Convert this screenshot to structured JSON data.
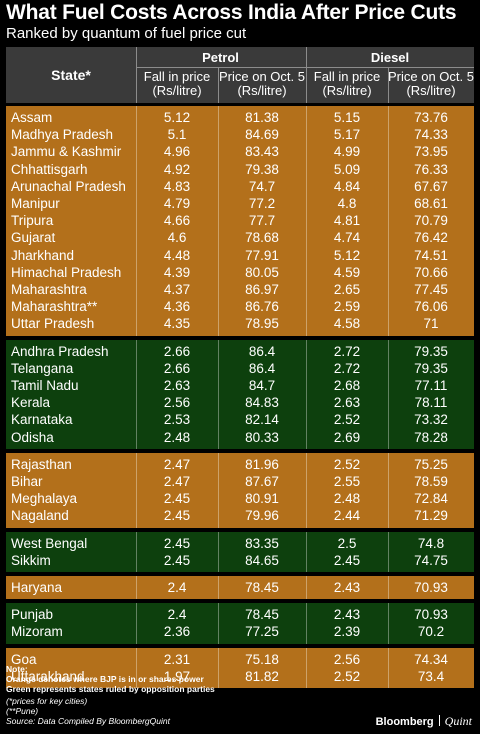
{
  "title": "What Fuel Costs Across India After Price Cuts",
  "subtitle": "Ranked by quantum of fuel price cut",
  "colors": {
    "bjp_orange": "#b3701b",
    "opposition_green": "#0d400d",
    "header_gray": "#3a3a3a"
  },
  "header": {
    "state": "State*",
    "petrol": "Petrol",
    "diesel": "Diesel",
    "fall_line1": "Fall in price",
    "fall_line2": "(Rs/litre)",
    "price_line1": "Price on Oct. 5",
    "price_line2": "(Rs/litre)"
  },
  "chart_data": {
    "type": "table",
    "columns": [
      "State*",
      "Petrol Fall in price (Rs/litre)",
      "Petrol Price on Oct. 5 (Rs/litre)",
      "Diesel Fall in price (Rs/litre)",
      "Diesel Price on Oct. 5 (Rs/litre)"
    ],
    "groups": [
      {
        "color": "orange",
        "rows": [
          [
            "Assam",
            "5.12",
            "81.38",
            "5.15",
            "73.76"
          ],
          [
            "Madhya Pradesh",
            "5.1",
            "84.69",
            "5.17",
            "74.33"
          ],
          [
            "Jammu & Kashmir",
            "4.96",
            "83.43",
            "4.99",
            "73.95"
          ],
          [
            "Chhattisgarh",
            "4.92",
            "79.38",
            "5.09",
            "76.33"
          ],
          [
            "Arunachal Pradesh",
            "4.83",
            "74.7",
            "4.84",
            "67.67"
          ],
          [
            "Manipur",
            "4.79",
            "77.2",
            "4.8",
            "68.61"
          ],
          [
            "Tripura",
            "4.66",
            "77.7",
            "4.81",
            "70.79"
          ],
          [
            "Gujarat",
            "4.6",
            "78.68",
            "4.74",
            "76.42"
          ],
          [
            "Jharkhand",
            "4.48",
            "77.91",
            "5.12",
            "74.51"
          ],
          [
            "Himachal Pradesh",
            "4.39",
            "80.05",
            "4.59",
            "70.66"
          ],
          [
            "Maharashtra",
            "4.37",
            "86.97",
            "2.65",
            "77.45"
          ],
          [
            "Maharashtra**",
            "4.36",
            "86.76",
            "2.59",
            "76.06"
          ],
          [
            "Uttar Pradesh",
            "4.35",
            "78.95",
            "4.58",
            "71"
          ]
        ]
      },
      {
        "color": "green",
        "rows": [
          [
            "Andhra Pradesh",
            "2.66",
            "86.4",
            "2.72",
            "79.35"
          ],
          [
            "Telangana",
            "2.66",
            "86.4",
            "2.72",
            "79.35"
          ],
          [
            "Tamil Nadu",
            "2.63",
            "84.7",
            "2.68",
            "77.11"
          ],
          [
            "Kerala",
            "2.56",
            "84.83",
            "2.63",
            "78.11"
          ],
          [
            "Karnataka",
            "2.53",
            "82.14",
            "2.52",
            "73.32"
          ],
          [
            "Odisha",
            "2.48",
            "80.33",
            "2.69",
            "78.28"
          ]
        ]
      },
      {
        "color": "orange",
        "rows": [
          [
            "Rajasthan",
            "2.47",
            "81.96",
            "2.52",
            "75.25"
          ],
          [
            "Bihar",
            "2.47",
            "87.67",
            "2.55",
            "78.59"
          ],
          [
            "Meghalaya",
            "2.45",
            "80.91",
            "2.48",
            "72.84"
          ],
          [
            "Nagaland",
            "2.45",
            "79.96",
            "2.44",
            "71.29"
          ]
        ]
      },
      {
        "color": "green",
        "rows": [
          [
            "West Bengal",
            "2.45",
            "83.35",
            "2.5",
            "74.8"
          ],
          [
            "Sikkim",
            "2.45",
            "84.65",
            "2.45",
            "74.75"
          ]
        ]
      },
      {
        "color": "orange",
        "rows": [
          [
            "Haryana",
            "2.4",
            "78.45",
            "2.43",
            "70.93"
          ]
        ]
      },
      {
        "color": "green",
        "rows": [
          [
            "Punjab",
            "2.4",
            "78.45",
            "2.43",
            "70.93"
          ],
          [
            "Mizoram",
            "2.36",
            "77.25",
            "2.39",
            "70.2"
          ]
        ]
      },
      {
        "color": "orange",
        "rows": [
          [
            "Goa",
            "2.31",
            "75.18",
            "2.56",
            "74.34"
          ],
          [
            "Uttarakhand",
            "1.97",
            "81.82",
            "2.52",
            "73.4"
          ]
        ]
      }
    ]
  },
  "notes": {
    "label": "Note:",
    "line1": "Orange denotes where BJP is in or shares power",
    "line2": "Green represents states ruled by opposition parties",
    "line3": "(*prices for key cities)",
    "line4": "(**Pune)",
    "source": "Source: Data Compiled By BloombergQuint"
  },
  "brand": {
    "name": "Bloomberg",
    "sub": "Quint"
  }
}
